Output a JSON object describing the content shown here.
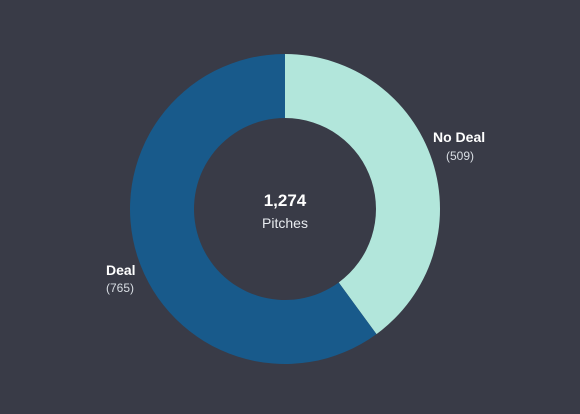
{
  "chart_data": {
    "type": "pie",
    "style": "donut",
    "center": {
      "total": "1,274",
      "caption": "Pitches"
    },
    "slices": [
      {
        "name": "No Deal",
        "value": 509,
        "count_label": "(509)",
        "color": "#b2e6db"
      },
      {
        "name": "Deal",
        "value": 765,
        "count_label": "(765)",
        "color": "#185a8b"
      }
    ],
    "start_angle_deg": 0,
    "direction": "clockwise",
    "legend": "labels beside slices"
  },
  "colors": {
    "background": "#393b47"
  }
}
